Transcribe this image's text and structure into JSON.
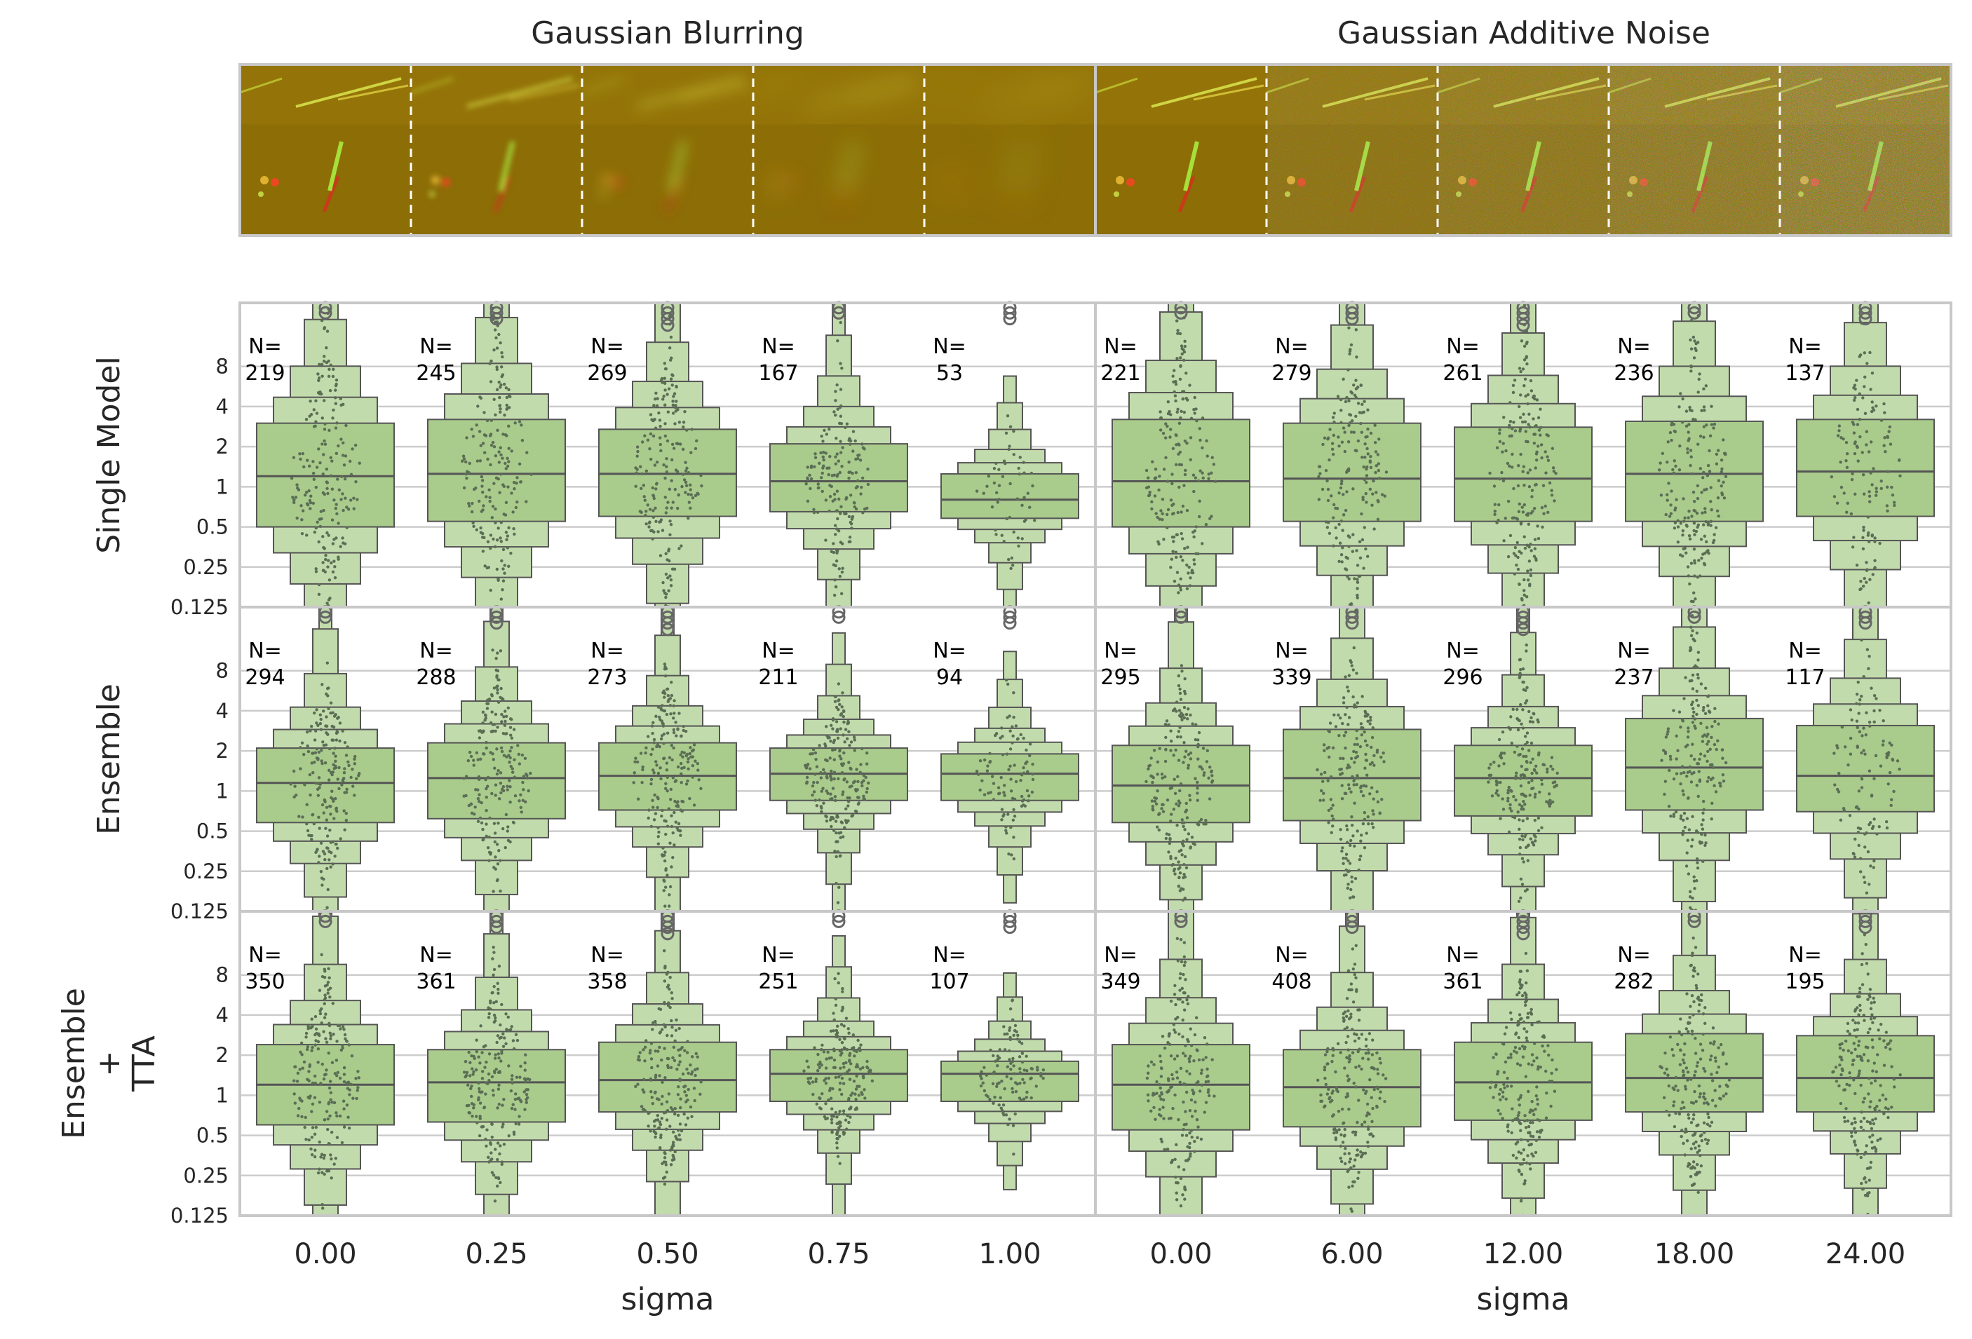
{
  "figure": {
    "panel_titles": [
      "Gaussian Blurring",
      "Gaussian Additive Noise"
    ],
    "row_labels": [
      [
        "Single Model"
      ],
      [
        "Ensemble"
      ],
      [
        "Ensemble",
        "+",
        "TTA"
      ]
    ],
    "colors": {
      "box": "#a9cb8c",
      "box_light": "#c2dbac",
      "edge": "#555555",
      "dot": "#5b6e55",
      "grid": "#cccccc",
      "frame": "#c8c8c8",
      "image_base": "#8a6a0a"
    }
  },
  "chart_data": [
    {
      "type": "boxen",
      "panel": "Gaussian Blurring",
      "xlabel": "sigma",
      "x_ticks": [
        "0.00",
        "0.25",
        "0.50",
        "0.75",
        "1.00"
      ],
      "y_scale": "log2",
      "y_ticks": [
        "0.125",
        "0.25",
        "0.5",
        "1",
        "2",
        "4",
        "8"
      ],
      "ylim": [
        0.125,
        24
      ],
      "grid": true,
      "rows": [
        {
          "name": "Single Model",
          "n": [
            219,
            245,
            269,
            167,
            53
          ],
          "median": [
            1.2,
            1.25,
            1.25,
            1.1,
            0.8
          ],
          "q1": [
            0.5,
            0.55,
            0.6,
            0.65,
            0.58
          ],
          "q3": [
            3.0,
            3.2,
            2.7,
            2.1,
            1.25
          ]
        },
        {
          "name": "Ensemble",
          "n": [
            294,
            288,
            273,
            211,
            94
          ],
          "median": [
            1.15,
            1.25,
            1.3,
            1.35,
            1.35
          ],
          "q1": [
            0.58,
            0.62,
            0.72,
            0.85,
            0.85
          ],
          "q3": [
            2.1,
            2.3,
            2.3,
            2.1,
            1.9
          ]
        },
        {
          "name": "Ensemble + TTA",
          "n": [
            350,
            361,
            358,
            251,
            107
          ],
          "median": [
            1.2,
            1.25,
            1.3,
            1.45,
            1.45
          ],
          "q1": [
            0.6,
            0.63,
            0.75,
            0.9,
            0.9
          ],
          "q3": [
            2.4,
            2.2,
            2.5,
            2.2,
            1.8
          ]
        }
      ]
    },
    {
      "type": "boxen",
      "panel": "Gaussian Additive Noise",
      "xlabel": "sigma",
      "x_ticks": [
        "0.00",
        "6.00",
        "12.00",
        "18.00",
        "24.00"
      ],
      "y_scale": "log2",
      "y_ticks": [
        "0.125",
        "0.25",
        "0.5",
        "1",
        "2",
        "4",
        "8"
      ],
      "ylim": [
        0.125,
        24
      ],
      "grid": true,
      "rows": [
        {
          "name": "Single Model",
          "n": [
            221,
            279,
            261,
            236,
            137
          ],
          "median": [
            1.1,
            1.15,
            1.15,
            1.25,
            1.3
          ],
          "q1": [
            0.5,
            0.55,
            0.55,
            0.55,
            0.6
          ],
          "q3": [
            3.2,
            3.0,
            2.8,
            3.1,
            3.2
          ]
        },
        {
          "name": "Ensemble",
          "n": [
            295,
            339,
            296,
            237,
            117
          ],
          "median": [
            1.1,
            1.25,
            1.25,
            1.5,
            1.3
          ],
          "q1": [
            0.58,
            0.6,
            0.65,
            0.72,
            0.7
          ],
          "q3": [
            2.2,
            2.9,
            2.2,
            3.5,
            3.1
          ]
        },
        {
          "name": "Ensemble + TTA",
          "n": [
            349,
            408,
            361,
            282,
            195
          ],
          "median": [
            1.2,
            1.15,
            1.25,
            1.35,
            1.35
          ],
          "q1": [
            0.55,
            0.58,
            0.65,
            0.75,
            0.75
          ],
          "q3": [
            2.4,
            2.2,
            2.5,
            2.9,
            2.8
          ]
        }
      ]
    }
  ]
}
